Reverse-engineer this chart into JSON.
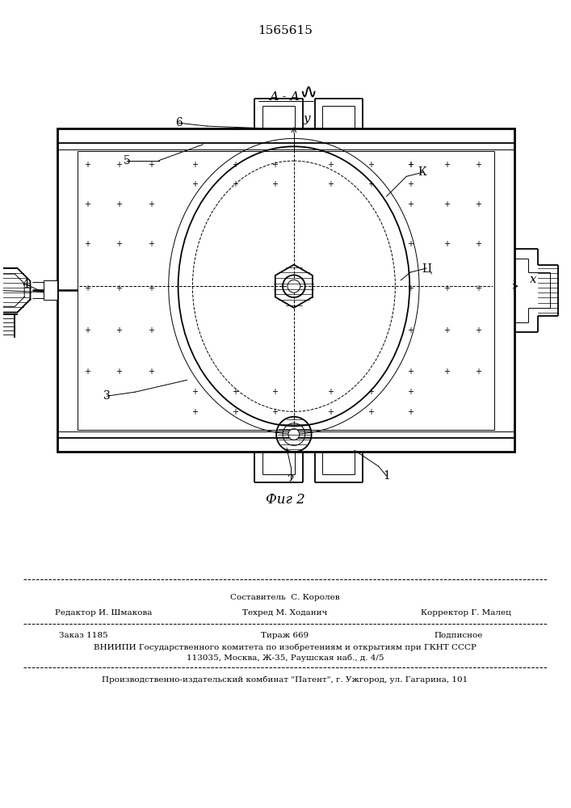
{
  "title_patent": "1565615",
  "section_label": "А - А",
  "fig_label": "Фиг 2",
  "axis_x_label": "х",
  "axis_y_label": "у",
  "bg_color": "#ffffff",
  "line_color": "#000000"
}
